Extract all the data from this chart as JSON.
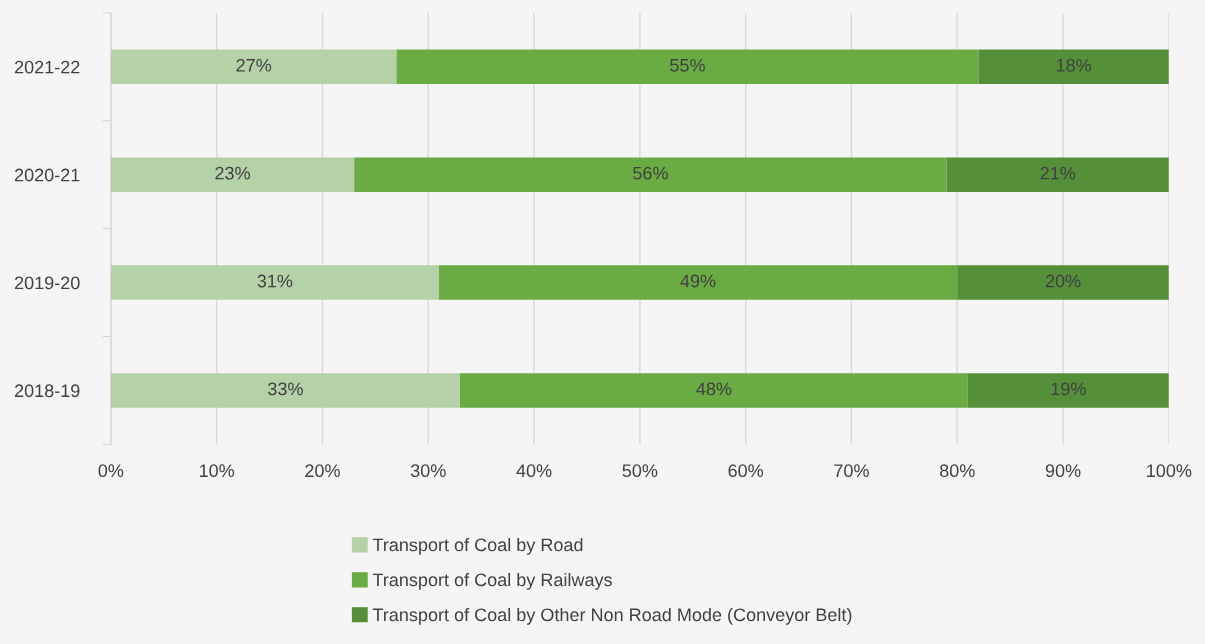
{
  "chart_data": {
    "type": "bar",
    "orientation": "horizontal",
    "stacked": true,
    "categories": [
      "2021-22",
      "2020-21",
      "2019-20",
      "2018-19"
    ],
    "series": [
      {
        "name": "Transport of Coal by Road",
        "color": "#b5d1a8",
        "values": [
          27,
          23,
          31,
          33
        ],
        "value_labels": [
          "27%",
          "23%",
          "31%",
          "33%"
        ]
      },
      {
        "name": "Transport of Coal by Railways",
        "color": "#6aab44",
        "values": [
          55,
          56,
          49,
          48
        ],
        "value_labels": [
          "55%",
          "56%",
          "49%",
          "48%"
        ]
      },
      {
        "name": "Transport of Coal by Other Non Road Mode (Conveyor Belt)",
        "color": "#568f39",
        "values": [
          18,
          21,
          20,
          19
        ],
        "value_labels": [
          "18%",
          "21%",
          "20%",
          "19%"
        ]
      }
    ],
    "xlim": [
      0,
      100
    ],
    "xticks": [
      {
        "value": 0,
        "label": "0%"
      },
      {
        "value": 10,
        "label": "10%"
      },
      {
        "value": 20,
        "label": "20%"
      },
      {
        "value": 30,
        "label": "30%"
      },
      {
        "value": 40,
        "label": "40%"
      },
      {
        "value": 50,
        "label": "50%"
      },
      {
        "value": 60,
        "label": "60%"
      },
      {
        "value": 70,
        "label": "70%"
      },
      {
        "value": 80,
        "label": "80%"
      },
      {
        "value": 90,
        "label": "90%"
      },
      {
        "value": 100,
        "label": "100%"
      }
    ],
    "grid": "x",
    "legend": "bottom"
  }
}
